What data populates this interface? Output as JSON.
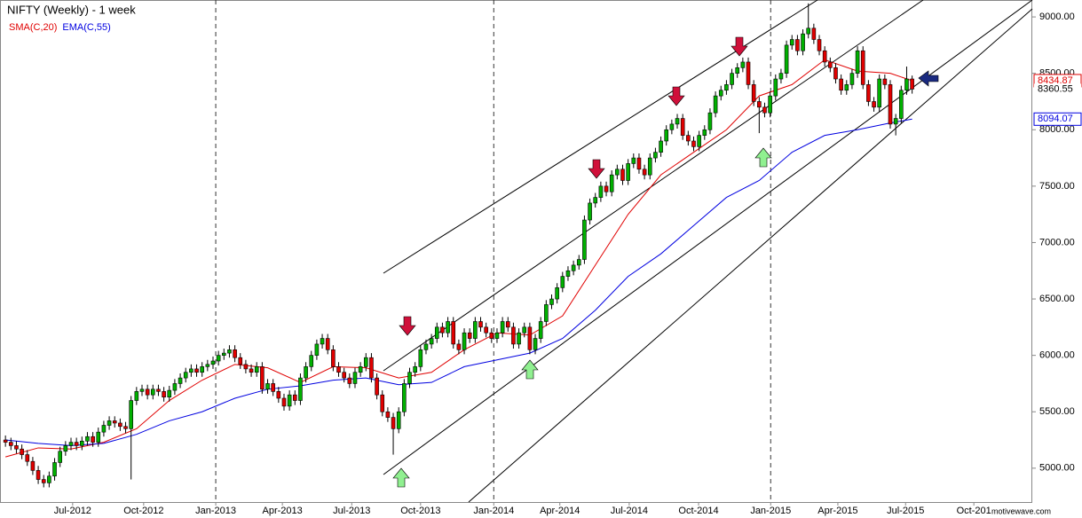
{
  "chart_data": {
    "type": "candlestick",
    "title": "NIFTY (Weekly) - 1 week",
    "watermark": "motivewave.com",
    "up_color": "#00b000",
    "down_color": "#e00000",
    "xlim": [
      -1,
      188
    ],
    "ylim": [
      4700,
      9150
    ],
    "xticks": [
      {
        "value": 12.3,
        "label": "Jul-2012"
      },
      {
        "value": 25.3,
        "label": "Oct-2012"
      },
      {
        "value": 38.5,
        "label": "Jan-2013"
      },
      {
        "value": 50.7,
        "label": "Apr-2013"
      },
      {
        "value": 63.4,
        "label": "Jul-2013"
      },
      {
        "value": 76.0,
        "label": "Oct-2013"
      },
      {
        "value": 89.4,
        "label": "Jan-2014"
      },
      {
        "value": 101.5,
        "label": "Apr-2014"
      },
      {
        "value": 114.2,
        "label": "Jul-2014"
      },
      {
        "value": 126.9,
        "label": "Oct-2014"
      },
      {
        "value": 140.1,
        "label": "Jan-2015"
      },
      {
        "value": 152.4,
        "label": "Apr-2015"
      },
      {
        "value": 164.8,
        "label": "Jul-2015"
      },
      {
        "value": 177.3,
        "label": "Oct-201"
      }
    ],
    "yticks": [
      {
        "value": 5000,
        "label": "5000.00"
      },
      {
        "value": 5500,
        "label": "5500.00"
      },
      {
        "value": 6000,
        "label": "6000.00"
      },
      {
        "value": 6500,
        "label": "6500.00"
      },
      {
        "value": 7000,
        "label": "7000.00"
      },
      {
        "value": 7500,
        "label": "7500.00"
      },
      {
        "value": 8000,
        "label": "8000.00"
      },
      {
        "value": 8500,
        "label": "8500.00"
      },
      {
        "value": 9000,
        "label": "9000.00"
      }
    ],
    "open": [
      5250,
      5230,
      5200,
      5170,
      5120,
      5060,
      4980,
      4900,
      4870,
      4930,
      5050,
      5150,
      5200,
      5230,
      5200,
      5240,
      5280,
      5230,
      5320,
      5380,
      5420,
      5400,
      5370,
      5350,
      5600,
      5680,
      5700,
      5650,
      5700,
      5680,
      5630,
      5690,
      5750,
      5800,
      5850,
      5880,
      5850,
      5900,
      5920,
      5950,
      6000,
      6020,
      6050,
      5980,
      5920,
      5880,
      5850,
      5900,
      5700,
      5750,
      5680,
      5620,
      5550,
      5650,
      5600,
      5800,
      5900,
      6000,
      6100,
      6150,
      6050,
      5900,
      5850,
      5800,
      5750,
      5850,
      5900,
      5980,
      5800,
      5650,
      5500,
      5450,
      5350,
      5500,
      5750,
      5850,
      5900,
      6050,
      6100,
      6150,
      6250,
      6200,
      6300,
      6100,
      6050,
      6200,
      6150,
      6300,
      6250,
      6200,
      6150,
      6200,
      6300,
      6250,
      6100,
      6200,
      6250,
      6050,
      6150,
      6300,
      6450,
      6500,
      6600,
      6700,
      6750,
      6800,
      6850,
      7200,
      7350,
      7400,
      7500,
      7450,
      7600,
      7650,
      7550,
      7700,
      7750,
      7650,
      7600,
      7750,
      7800,
      7900,
      8000,
      8050,
      8100,
      7950,
      7900,
      7850,
      7950,
      8000,
      8150,
      8300,
      8350,
      8400,
      8500,
      8550,
      8600,
      8400,
      8250,
      8200,
      8150,
      8300,
      8450,
      8500,
      8750,
      8800,
      8700,
      8850,
      8900,
      8800,
      8700,
      8600,
      8550,
      8450,
      8350,
      8400,
      8500,
      8700,
      8400,
      8250,
      8200,
      8450,
      8400,
      8050,
      8100,
      8350,
      8450
    ],
    "high": [
      5290,
      5270,
      5240,
      5210,
      5160,
      5100,
      5020,
      4940,
      4970,
      5090,
      5190,
      5240,
      5270,
      5270,
      5280,
      5320,
      5320,
      5360,
      5420,
      5460,
      5460,
      5440,
      5410,
      5640,
      5720,
      5740,
      5740,
      5740,
      5740,
      5720,
      5730,
      5790,
      5840,
      5890,
      5920,
      5920,
      5940,
      5960,
      5990,
      6040,
      6060,
      6090,
      6090,
      6020,
      5960,
      5920,
      5940,
      5940,
      5790,
      5790,
      5720,
      5660,
      5690,
      5690,
      5840,
      5940,
      6040,
      6140,
      6190,
      6190,
      6090,
      5940,
      5890,
      5840,
      5890,
      5940,
      6020,
      6020,
      5840,
      5690,
      5540,
      5490,
      5540,
      5790,
      5890,
      5940,
      6090,
      6140,
      6190,
      6290,
      6290,
      6340,
      6340,
      6140,
      6240,
      6240,
      6340,
      6340,
      6290,
      6240,
      6240,
      6340,
      6340,
      6290,
      6240,
      6290,
      6290,
      6190,
      6340,
      6490,
      6540,
      6640,
      6740,
      6790,
      6840,
      6890,
      7240,
      7390,
      7440,
      7540,
      7540,
      7640,
      7690,
      7690,
      7740,
      7790,
      7790,
      7690,
      7790,
      7840,
      7940,
      8040,
      8090,
      8140,
      8140,
      7990,
      7940,
      7990,
      8040,
      8190,
      8340,
      8390,
      8440,
      8540,
      8590,
      8640,
      8640,
      8440,
      8290,
      8240,
      8340,
      8490,
      8540,
      8790,
      8840,
      8840,
      8890,
      9120,
      8940,
      8840,
      8740,
      8640,
      8590,
      8490,
      8440,
      8540,
      8740,
      8740,
      8440,
      8290,
      8490,
      8490,
      8440,
      8140,
      8390,
      8560,
      8480
    ],
    "low": [
      5190,
      5160,
      5130,
      5080,
      5020,
      4940,
      4860,
      4830,
      4830,
      4890,
      5010,
      5110,
      5160,
      5160,
      5160,
      5200,
      5190,
      5190,
      5280,
      5340,
      5360,
      5330,
      5310,
      4900,
      5560,
      5640,
      5610,
      5610,
      5640,
      5590,
      5590,
      5650,
      5710,
      5760,
      5810,
      5810,
      5810,
      5860,
      5880,
      5910,
      5960,
      5980,
      5940,
      5880,
      5840,
      5810,
      5810,
      5660,
      5660,
      5640,
      5580,
      5510,
      5510,
      5560,
      5560,
      5760,
      5860,
      5960,
      6060,
      6010,
      5860,
      5810,
      5760,
      5710,
      5710,
      5810,
      5860,
      5760,
      5610,
      5460,
      5410,
      5120,
      5310,
      5460,
      5710,
      5810,
      5860,
      6010,
      6060,
      6110,
      6160,
      6160,
      6060,
      6010,
      6010,
      6110,
      6110,
      6210,
      6160,
      6110,
      6110,
      6160,
      6210,
      6060,
      6060,
      6160,
      6010,
      6010,
      6110,
      6260,
      6410,
      6460,
      6560,
      6660,
      6710,
      6760,
      6810,
      7160,
      7310,
      7360,
      7410,
      7410,
      7560,
      7510,
      7510,
      7660,
      7610,
      7560,
      7560,
      7710,
      7760,
      7860,
      7960,
      8010,
      7910,
      7860,
      7810,
      7810,
      7910,
      7960,
      8110,
      8260,
      8310,
      8360,
      8460,
      8510,
      8360,
      8210,
      7970,
      8110,
      8110,
      8260,
      8410,
      8460,
      8710,
      8660,
      8660,
      8810,
      8760,
      8660,
      8560,
      8510,
      8410,
      8310,
      8310,
      8360,
      8460,
      8360,
      8210,
      8160,
      8160,
      8360,
      8010,
      7950,
      8060,
      8310,
      8320
    ],
    "close": [
      5230,
      5200,
      5170,
      5120,
      5060,
      4980,
      4900,
      4870,
      4930,
      5050,
      5150,
      5200,
      5230,
      5200,
      5240,
      5280,
      5230,
      5320,
      5380,
      5420,
      5400,
      5370,
      5350,
      5600,
      5680,
      5700,
      5650,
      5700,
      5680,
      5630,
      5690,
      5750,
      5800,
      5850,
      5880,
      5850,
      5900,
      5920,
      5950,
      6000,
      6020,
      6050,
      5980,
      5920,
      5880,
      5850,
      5900,
      5700,
      5750,
      5680,
      5620,
      5550,
      5650,
      5600,
      5800,
      5900,
      6000,
      6100,
      6150,
      6050,
      5900,
      5850,
      5800,
      5750,
      5850,
      5900,
      5980,
      5800,
      5650,
      5500,
      5450,
      5350,
      5500,
      5750,
      5850,
      5900,
      6050,
      6100,
      6150,
      6250,
      6200,
      6300,
      6100,
      6050,
      6200,
      6150,
      6300,
      6250,
      6200,
      6150,
      6200,
      6300,
      6250,
      6100,
      6200,
      6250,
      6050,
      6150,
      6300,
      6450,
      6500,
      6600,
      6700,
      6750,
      6800,
      6850,
      7200,
      7350,
      7400,
      7500,
      7450,
      7600,
      7650,
      7550,
      7700,
      7750,
      7650,
      7600,
      7750,
      7800,
      7900,
      8000,
      8050,
      8100,
      7950,
      7900,
      7850,
      7950,
      8000,
      8150,
      8300,
      8350,
      8400,
      8500,
      8550,
      8600,
      8400,
      8250,
      8200,
      8150,
      8300,
      8450,
      8500,
      8750,
      8800,
      8700,
      8850,
      8900,
      8800,
      8700,
      8600,
      8550,
      8450,
      8350,
      8400,
      8500,
      8700,
      8400,
      8250,
      8200,
      8450,
      8400,
      8050,
      8100,
      8350,
      8450,
      8360.55
    ],
    "series": [
      {
        "name": "SMA(C,20)",
        "color": "#e00000",
        "x": [
          0,
          6,
          12,
          18,
          24,
          30,
          36,
          42,
          48,
          54,
          60,
          66,
          72,
          78,
          84,
          90,
          96,
          102,
          108,
          114,
          120,
          126,
          132,
          138,
          144,
          150,
          156,
          162,
          166
        ],
        "values": [
          5100,
          5180,
          5170,
          5230,
          5350,
          5600,
          5780,
          5920,
          5890,
          5760,
          5900,
          5890,
          5800,
          5850,
          6050,
          6200,
          6180,
          6350,
          6800,
          7250,
          7600,
          7800,
          8000,
          8300,
          8400,
          8620,
          8520,
          8500,
          8434.87
        ]
      },
      {
        "name": "EMA(C,55)",
        "color": "#0000e0",
        "x": [
          0,
          6,
          12,
          18,
          24,
          30,
          36,
          42,
          48,
          54,
          60,
          66,
          72,
          78,
          84,
          90,
          96,
          102,
          108,
          114,
          120,
          126,
          132,
          138,
          144,
          150,
          156,
          162,
          166
        ],
        "values": [
          5250,
          5220,
          5200,
          5220,
          5300,
          5420,
          5500,
          5620,
          5700,
          5730,
          5780,
          5800,
          5740,
          5760,
          5900,
          5960,
          6020,
          6150,
          6400,
          6700,
          6900,
          7150,
          7400,
          7550,
          7800,
          7950,
          8000,
          8060,
          8094.07
        ]
      }
    ]
  }
}
